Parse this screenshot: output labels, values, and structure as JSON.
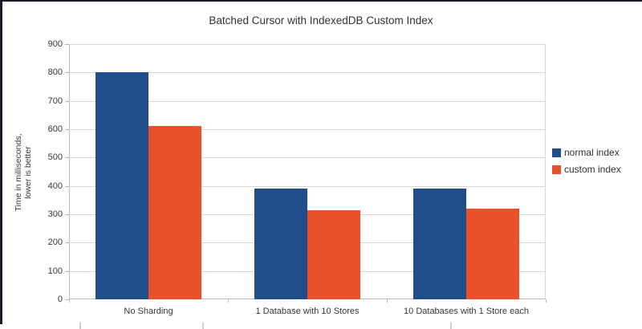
{
  "window": {
    "background": "#ffffff",
    "frame_border_color": "#1a1c27"
  },
  "chart_data": {
    "type": "bar",
    "title": "Batched Cursor with IndexedDB Custom Index",
    "categories": [
      "No Sharding",
      "1 Database with 10 Stores",
      "10 Databases with 1 Store each"
    ],
    "series": [
      {
        "name": "normal index",
        "color": "#1f4e8a",
        "values": [
          800,
          390,
          390
        ]
      },
      {
        "name": "custom index",
        "color": "#e9512b",
        "values": [
          610,
          315,
          320
        ]
      }
    ],
    "xlabel": "",
    "ylabel": "Time in milliseconds,\nlower is better",
    "ylim": [
      0,
      900
    ],
    "yticks": [
      0,
      100,
      200,
      300,
      400,
      500,
      600,
      700,
      800,
      900
    ],
    "grid": true,
    "legend_position": "right"
  },
  "colors": {
    "gridline": "#d8d8dc",
    "axis_line": "#bcbcc0",
    "tick_mark": "#a9b6cf",
    "text": "#33363d"
  },
  "artifacts": {
    "clipped_bottom_ticks_x": [
      99,
      252,
      561
    ]
  }
}
